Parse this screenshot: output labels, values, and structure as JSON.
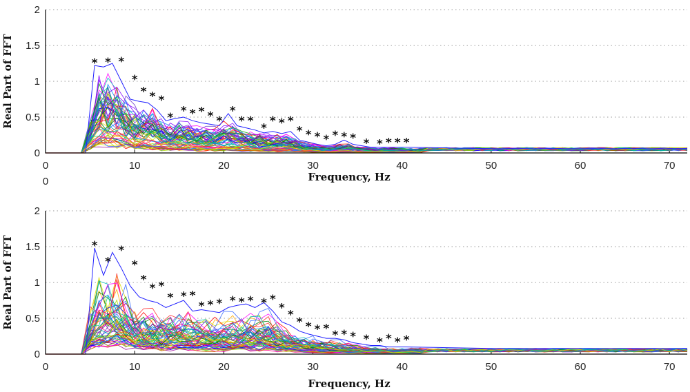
{
  "chart_data": [
    {
      "type": "line",
      "xlabel": "Frequency, Hz",
      "ylabel": "Real Part of FFT",
      "xlim": [
        0,
        72
      ],
      "ylim": [
        0,
        2
      ],
      "xticks": [
        "0",
        "10",
        "20",
        "30",
        "40",
        "50",
        "60",
        "70"
      ],
      "yticks": [
        "0",
        "0.5",
        "1",
        "1.5",
        "2"
      ],
      "grid": "y-dotted",
      "series_count_approx": 60,
      "envelope_max": {
        "x": [
          0,
          4.5,
          5.5,
          6.5,
          7.5,
          8.5,
          9.5,
          10.5,
          11.5,
          12.5,
          13.5,
          14.5,
          15.5,
          16.5,
          17.5,
          18.5,
          19.5,
          20.5,
          21.5,
          22.5,
          23.5,
          24.5,
          25.5,
          26.5,
          27.5,
          28.5,
          29.5,
          30.5,
          31.5,
          32.5,
          33.5,
          34.5,
          35.5,
          36.5,
          37.5,
          38.5,
          39.5,
          40.5,
          45,
          50,
          60,
          72
        ],
        "y": [
          0,
          0,
          1.22,
          1.2,
          1.25,
          1.0,
          0.75,
          0.72,
          0.7,
          0.6,
          0.45,
          0.48,
          0.5,
          0.45,
          0.42,
          0.4,
          0.38,
          0.55,
          0.38,
          0.35,
          0.32,
          0.28,
          0.3,
          0.27,
          0.3,
          0.18,
          0.15,
          0.12,
          0.1,
          0.12,
          0.18,
          0.12,
          0.1,
          0.08,
          0.08,
          0.08,
          0.08,
          0.08,
          0.07,
          0.06,
          0.06,
          0.06
        ]
      },
      "asterisks_x": [
        5.5,
        7,
        8.5,
        10,
        11,
        12,
        13,
        14,
        15.5,
        16.5,
        17.5,
        18.5,
        19.5,
        21,
        22,
        23,
        24.5,
        25.5,
        26.5,
        27.5,
        28.5,
        29.5,
        30.5,
        31.5,
        32.5,
        33.5,
        34.5,
        36,
        37.5,
        38.5,
        39.5,
        40.5
      ],
      "asterisks_y": [
        1.29,
        1.3,
        1.31,
        1.06,
        0.89,
        0.82,
        0.77,
        0.53,
        0.62,
        0.58,
        0.61,
        0.55,
        0.48,
        0.62,
        0.48,
        0.48,
        0.38,
        0.48,
        0.45,
        0.48,
        0.34,
        0.29,
        0.26,
        0.22,
        0.28,
        0.26,
        0.24,
        0.17,
        0.16,
        0.18,
        0.18,
        0.18
      ]
    },
    {
      "type": "line",
      "xlabel": "Frequency, Hz",
      "ylabel": "Real Part of FFT",
      "xlim": [
        0,
        72
      ],
      "ylim": [
        0,
        2
      ],
      "xticks": [
        "0",
        "10",
        "20",
        "30",
        "40",
        "50",
        "60",
        "70"
      ],
      "yticks": [
        "0",
        "0.5",
        "1",
        "1.5",
        "2"
      ],
      "grid": "y-dotted",
      "series_count_approx": 60,
      "envelope_max": {
        "x": [
          0,
          4.5,
          5.5,
          6.5,
          7.5,
          8.5,
          9.5,
          10.5,
          11.5,
          12.5,
          13.5,
          14.5,
          15.5,
          16.5,
          17.5,
          18.5,
          19.5,
          20.5,
          21.5,
          22.5,
          23.5,
          24.5,
          25.5,
          26.5,
          27.5,
          28.5,
          29.5,
          30.5,
          31.5,
          32.5,
          33.5,
          34.5,
          35.5,
          36.5,
          37.5,
          38.5,
          39.5,
          40.5,
          45,
          50,
          60,
          72
        ],
        "y": [
          0,
          0,
          1.48,
          1.1,
          1.42,
          1.2,
          0.95,
          0.8,
          0.75,
          0.72,
          0.65,
          0.7,
          0.75,
          0.6,
          0.62,
          0.6,
          0.58,
          0.65,
          0.68,
          0.7,
          0.65,
          0.72,
          0.6,
          0.45,
          0.4,
          0.32,
          0.28,
          0.25,
          0.22,
          0.22,
          0.2,
          0.16,
          0.14,
          0.12,
          0.12,
          0.1,
          0.1,
          0.1,
          0.09,
          0.08,
          0.08,
          0.08
        ]
      },
      "asterisks_x": [
        5.5,
        7,
        8.5,
        10,
        11,
        12,
        13,
        14,
        15.5,
        16.5,
        17.5,
        18.5,
        19.5,
        21,
        22,
        23,
        24.5,
        25.5,
        26.5,
        27.5,
        28.5,
        29.5,
        30.5,
        31.5,
        32.5,
        33.5,
        34.5,
        36,
        37.5,
        38.5,
        39.5,
        40.5
      ],
      "asterisks_y": [
        1.55,
        1.32,
        1.48,
        1.28,
        1.07,
        0.95,
        0.98,
        0.82,
        0.84,
        0.85,
        0.7,
        0.72,
        0.74,
        0.78,
        0.76,
        0.78,
        0.75,
        0.8,
        0.68,
        0.58,
        0.48,
        0.42,
        0.38,
        0.39,
        0.3,
        0.31,
        0.28,
        0.24,
        0.2,
        0.25,
        0.2,
        0.23
      ]
    }
  ],
  "misc": {
    "stray_label": "0",
    "asterisk": "*"
  }
}
